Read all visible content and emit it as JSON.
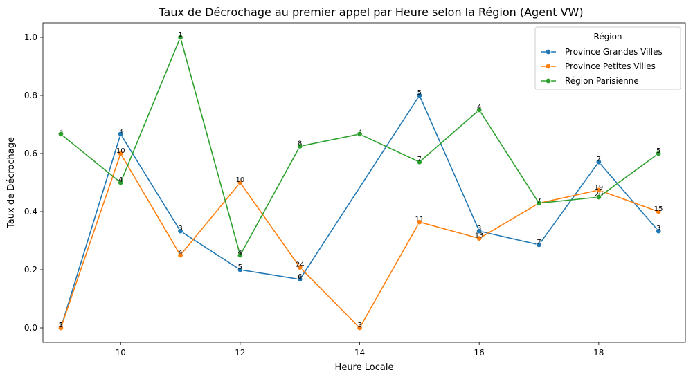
{
  "chart_data": {
    "type": "line",
    "title": "Taux de Décrochage au premier appel par Heure selon la Région (Agent VW)",
    "xlabel": "Heure Locale",
    "ylabel": "Taux de Décrochage",
    "xlim": [
      8.7,
      19.45
    ],
    "ylim": [
      -0.05,
      1.05
    ],
    "xticks": [
      10,
      12,
      14,
      16,
      18
    ],
    "yticks": [
      0.0,
      0.2,
      0.4,
      0.6,
      0.8,
      1.0
    ],
    "xtick_labels": [
      "10",
      "12",
      "14",
      "16",
      "18"
    ],
    "ytick_labels": [
      "0.0",
      "0.2",
      "0.4",
      "0.6",
      "0.8",
      "1.0"
    ],
    "grid": false,
    "legend": {
      "title": "Région",
      "placement": "top-right"
    },
    "series": [
      {
        "name": "Province Grandes Villes",
        "color": "#1f77b4",
        "points": [
          {
            "x": 9,
            "y": 0.0,
            "label": "1"
          },
          {
            "x": 10,
            "y": 0.667,
            "label": "3"
          },
          {
            "x": 11,
            "y": 0.333,
            "label": "3"
          },
          {
            "x": 12,
            "y": 0.2,
            "label": "5"
          },
          {
            "x": 13,
            "y": 0.167,
            "label": "6"
          },
          {
            "x": 15,
            "y": 0.8,
            "label": "5"
          },
          {
            "x": 16,
            "y": 0.333,
            "label": "3"
          },
          {
            "x": 17,
            "y": 0.286,
            "label": "7"
          },
          {
            "x": 18,
            "y": 0.571,
            "label": "7"
          },
          {
            "x": 19,
            "y": 0.333,
            "label": "3"
          }
        ]
      },
      {
        "name": "Province Petites Villes",
        "color": "#ff7f0e",
        "points": [
          {
            "x": 9,
            "y": 0.0,
            "label": "5"
          },
          {
            "x": 10,
            "y": 0.6,
            "label": "10"
          },
          {
            "x": 11,
            "y": 0.25,
            "label": "4"
          },
          {
            "x": 12,
            "y": 0.5,
            "label": "10"
          },
          {
            "x": 13,
            "y": 0.208,
            "label": "24"
          },
          {
            "x": 14,
            "y": 0.0,
            "label": "3"
          },
          {
            "x": 15,
            "y": 0.364,
            "label": "11"
          },
          {
            "x": 16,
            "y": 0.308,
            "label": "13"
          },
          {
            "x": 17,
            "y": 0.429,
            "label": "7"
          },
          {
            "x": 18,
            "y": 0.474,
            "label": "19"
          },
          {
            "x": 19,
            "y": 0.4,
            "label": "15"
          }
        ]
      },
      {
        "name": "Région Parisienne",
        "color": "#2ca02c",
        "points": [
          {
            "x": 9,
            "y": 0.667,
            "label": "3"
          },
          {
            "x": 10,
            "y": 0.5,
            "label": "4"
          },
          {
            "x": 11,
            "y": 1.0,
            "label": "1"
          },
          {
            "x": 12,
            "y": 0.25,
            "label": "4"
          },
          {
            "x": 13,
            "y": 0.625,
            "label": "8"
          },
          {
            "x": 14,
            "y": 0.667,
            "label": "3"
          },
          {
            "x": 15,
            "y": 0.571,
            "label": "7"
          },
          {
            "x": 16,
            "y": 0.75,
            "label": "4"
          },
          {
            "x": 17,
            "y": 0.429,
            "label": "7"
          },
          {
            "x": 18,
            "y": 0.45,
            "label": "20"
          },
          {
            "x": 19,
            "y": 0.6,
            "label": "5"
          }
        ]
      }
    ]
  }
}
